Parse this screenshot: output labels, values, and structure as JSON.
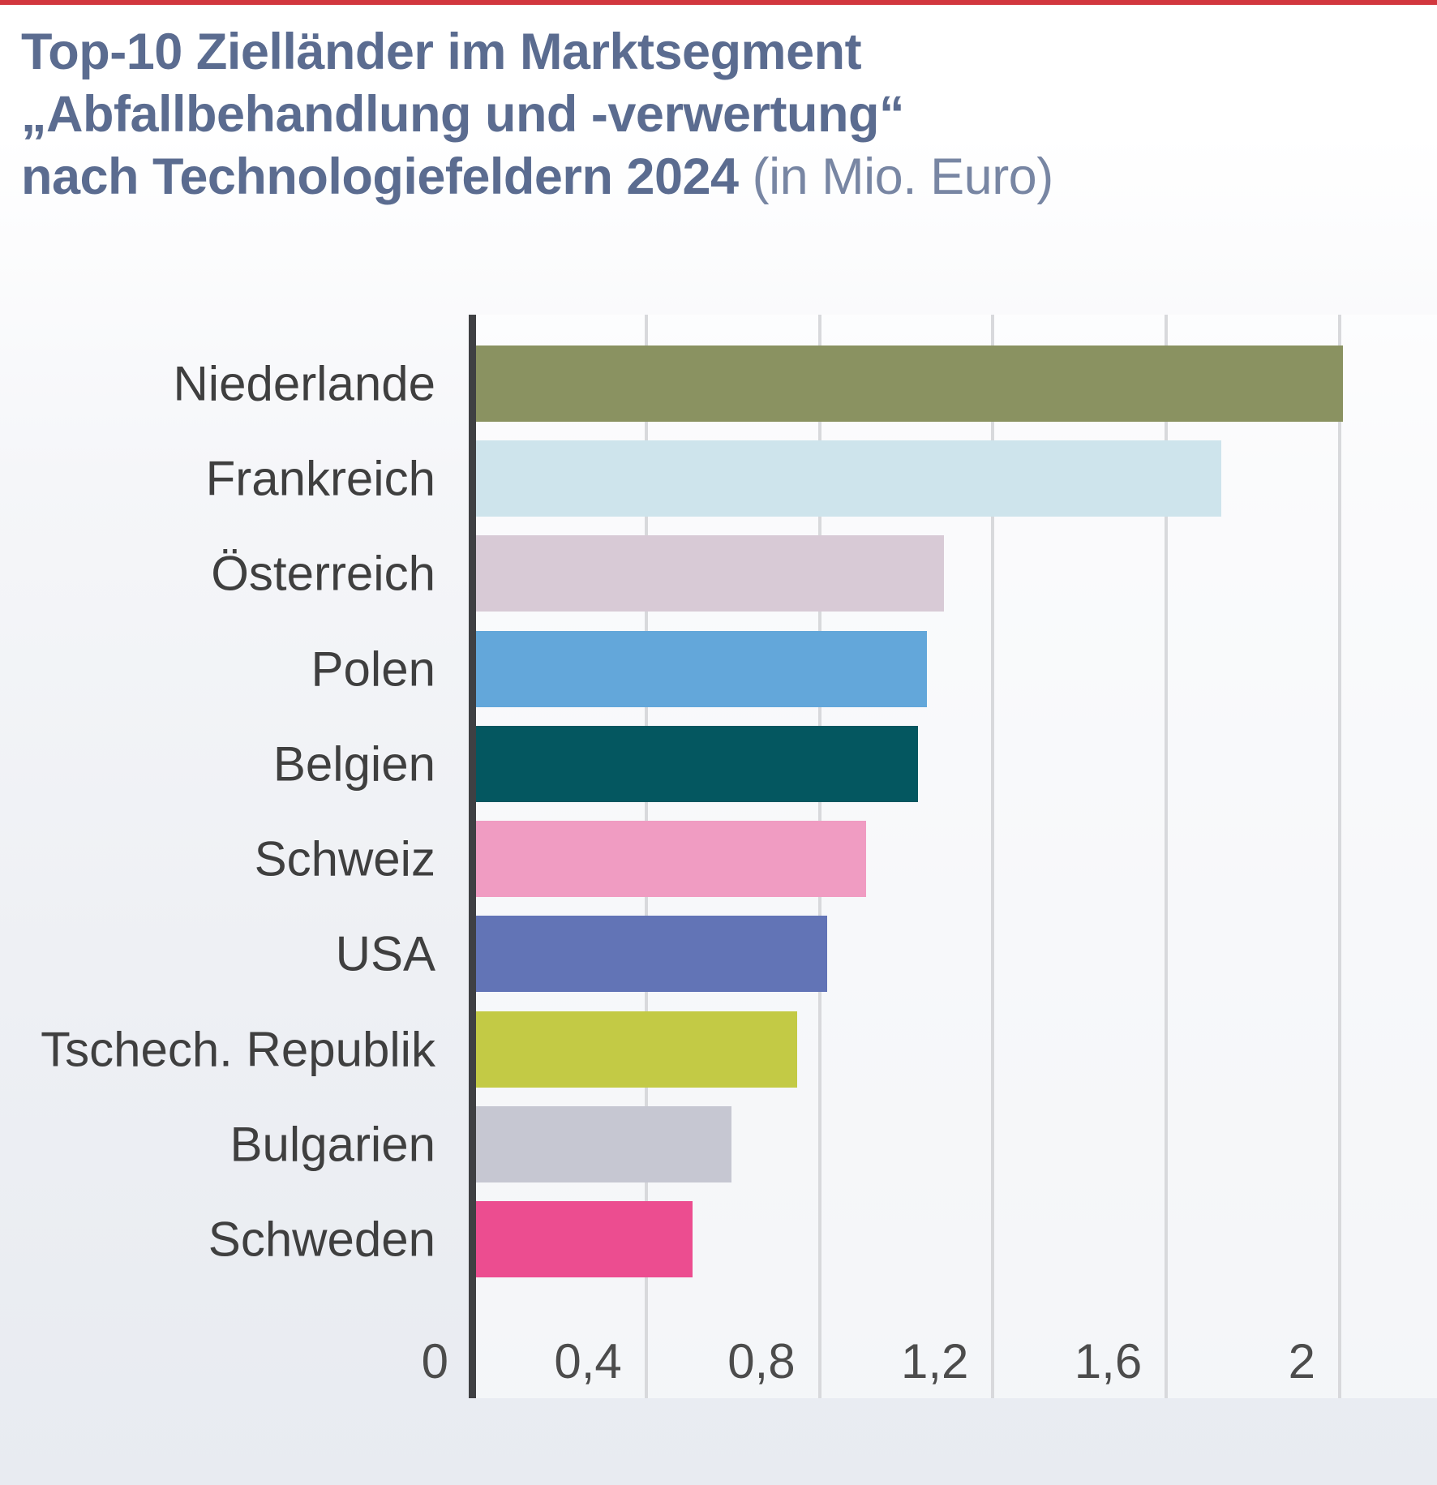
{
  "page": {
    "accent_bar_color": "#d2373e",
    "background_top": "#ffffff",
    "background_bottom": "#e8ebf1"
  },
  "title": {
    "line1": "Top-10 Zielländer im Marktsegment",
    "line2": "„Abfallbehandlung und -verwertung“",
    "line3_bold": "nach Technologiefeldern 2024",
    "line3_light": " (in Mio. Euro)",
    "color": "#5b6c90"
  },
  "chart_data": {
    "type": "bar",
    "orientation": "horizontal",
    "title": "Top-10 Zielländer im Marktsegment „Abfallbehandlung und -verwertung“ nach Technologiefeldern 2024",
    "unit": "Mio. Euro",
    "categories": [
      "Niederlande",
      "Frankreich",
      "Österreich",
      "Polen",
      "Belgien",
      "Schweiz",
      "USA",
      "Tschech. Republik",
      "Bulgarien",
      "Schweden"
    ],
    "values": [
      2.0,
      1.72,
      1.08,
      1.04,
      1.02,
      0.9,
      0.81,
      0.74,
      0.59,
      0.5
    ],
    "bar_colors": [
      "#8a9261",
      "#cee4ec",
      "#d8cad6",
      "#63a7da",
      "#045760",
      "#f09cc2",
      "#6274b6",
      "#c3ca45",
      "#c6c7d2",
      "#ec4d90"
    ],
    "x_ticks": [
      "0",
      "0,4",
      "0,8",
      "1,2",
      "1,6",
      "2"
    ],
    "x_tick_values": [
      0,
      0.4,
      0.8,
      1.2,
      1.6,
      2.0
    ],
    "xlim": [
      0,
      2.22
    ],
    "grid": true,
    "gridline_color": "#d8d9dc",
    "axis_line_color": "#3f4043",
    "label_color": "#3f3f3f",
    "tick_color": "#4c4c4c",
    "legend": "none"
  }
}
